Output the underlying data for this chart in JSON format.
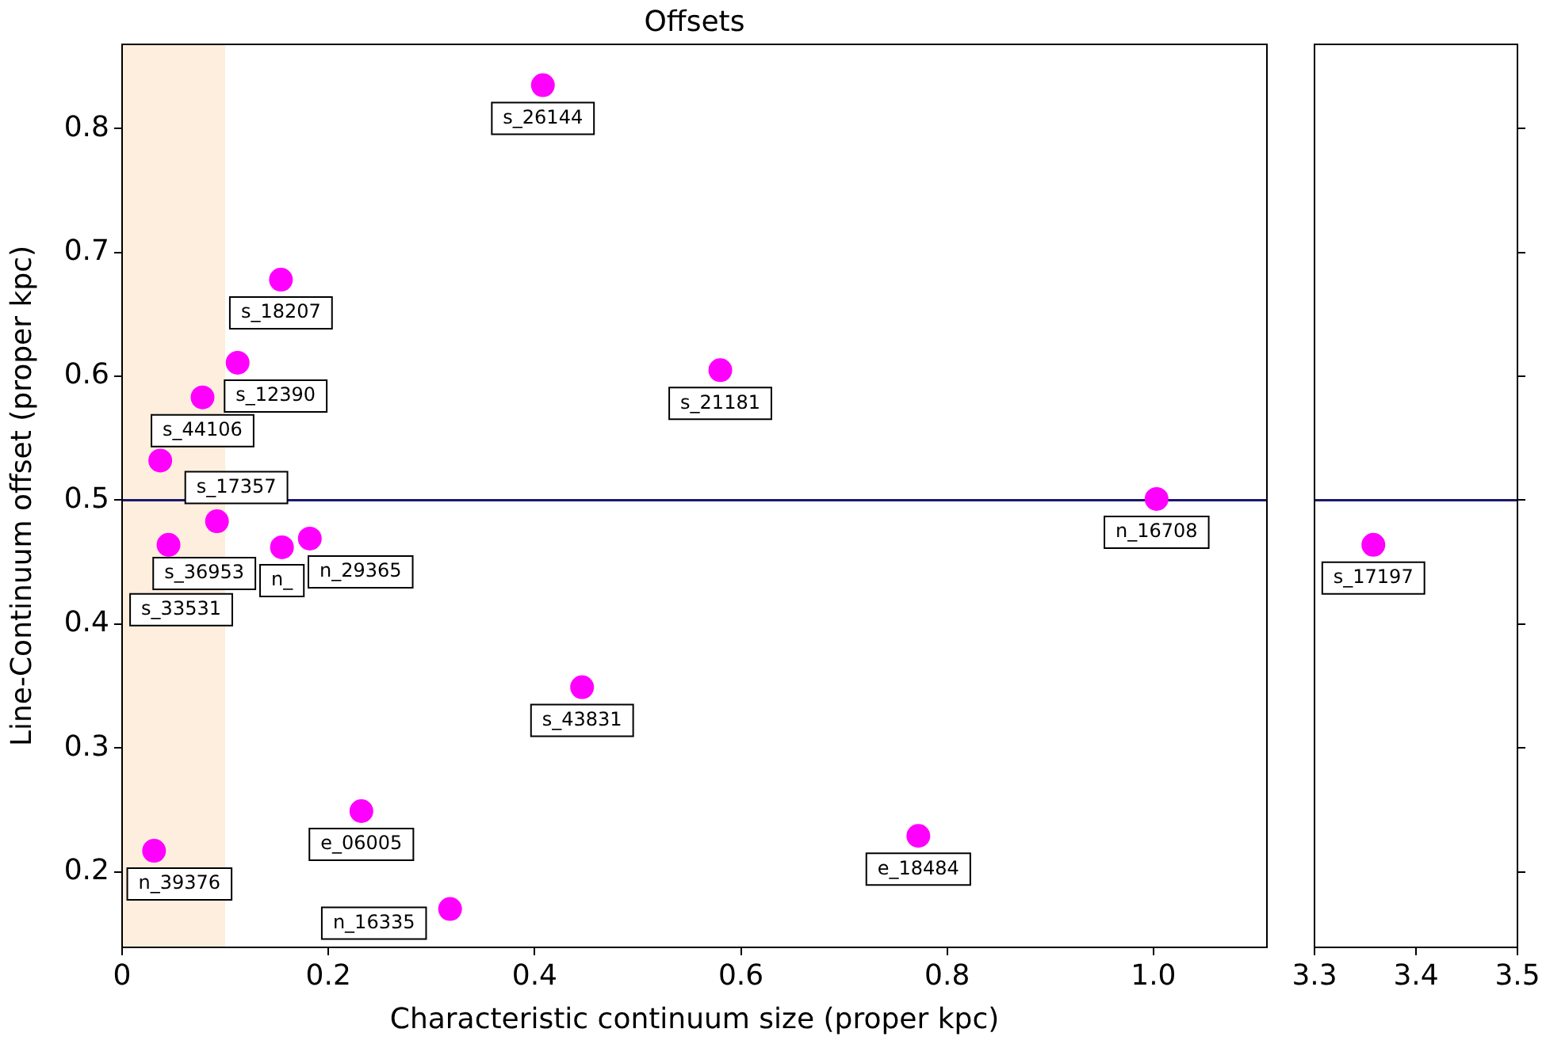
{
  "chart_data": [
    {
      "type": "scatter",
      "title": "Offsets",
      "xlabel": "Characteristic continuum size (proper kpc)",
      "ylabel": "Line-Continuum offset (proper kpc)",
      "series": [
        {
          "color": "#ff00ff",
          "x": [
            0.408,
            0.154,
            0.112,
            0.078,
            0.037,
            0.092,
            0.045,
            0.155,
            0.182,
            0.58,
            1.003,
            0.446,
            0.232,
            0.772,
            0.031,
            0.318
          ],
          "values": [
            0.835,
            0.678,
            0.611,
            0.583,
            0.532,
            0.483,
            0.464,
            0.462,
            0.469,
            0.605,
            0.501,
            0.349,
            0.249,
            0.229,
            0.217,
            0.17
          ]
        }
      ],
      "annotations": [
        {
          "text": "s_26144",
          "x": 0.408,
          "y": 0.835
        },
        {
          "text": "s_18207",
          "x": 0.154,
          "y": 0.678
        },
        {
          "text": "s_12390",
          "x": 0.112,
          "y": 0.611
        },
        {
          "text": "s_44106",
          "x": 0.078,
          "y": 0.583
        },
        {
          "text": "s_17357",
          "x": 0.037,
          "y": 0.532
        },
        {
          "text": "n_",
          "x": 0.155,
          "y": 0.462
        },
        {
          "text": "s_36953",
          "x": 0.092,
          "y": 0.483
        },
        {
          "text": "s_33531",
          "x": 0.045,
          "y": 0.464
        },
        {
          "text": "n_29365",
          "x": 0.182,
          "y": 0.469
        },
        {
          "text": "s_21181",
          "x": 0.58,
          "y": 0.605
        },
        {
          "text": "n_16708",
          "x": 1.003,
          "y": 0.501
        },
        {
          "text": "s_43831",
          "x": 0.446,
          "y": 0.349
        },
        {
          "text": "e_06005",
          "x": 0.232,
          "y": 0.249
        },
        {
          "text": "e_18484",
          "x": 0.772,
          "y": 0.229
        },
        {
          "text": "n_39376",
          "x": 0.031,
          "y": 0.217
        },
        {
          "text": "n_16335",
          "x": 0.318,
          "y": 0.17
        }
      ],
      "xlim": [
        0,
        1.11
      ],
      "xticks": [
        0,
        0.2,
        0.4,
        0.6,
        0.8,
        {
          "value": 1,
          "label": "1.0"
        }
      ],
      "ylim": [
        0.139,
        0.868
      ],
      "yticks": [
        0.2,
        0.3,
        0.4,
        0.5,
        0.6,
        0.7,
        0.8
      ],
      "ref_lines": [
        {
          "axis": "y",
          "value": 0.5,
          "color": "#191970"
        }
      ],
      "bands": [
        {
          "axis": "x",
          "from": 0,
          "to": 0.1,
          "color": "#fdeedd"
        }
      ],
      "marker": "circle",
      "grid": false,
      "legend": false
    },
    {
      "type": "scatter",
      "series": [
        {
          "color": "#ff00ff",
          "x": [
            3.358
          ],
          "values": [
            0.464
          ]
        }
      ],
      "annotations": [
        {
          "text": "s_17197",
          "x": 3.358,
          "y": 0.464
        }
      ],
      "xlim": [
        3.3,
        3.5
      ],
      "xticks": [
        3.3,
        3.4,
        3.5
      ],
      "ylim": [
        0.139,
        0.868
      ],
      "yticks": [
        0.2,
        0.3,
        0.4,
        0.5,
        0.6,
        0.7,
        0.8
      ],
      "ref_lines": [
        {
          "axis": "y",
          "value": 0.5,
          "color": "#191970"
        }
      ],
      "marker": "circle",
      "grid": false,
      "legend": false,
      "tick_labels": "x"
    }
  ]
}
